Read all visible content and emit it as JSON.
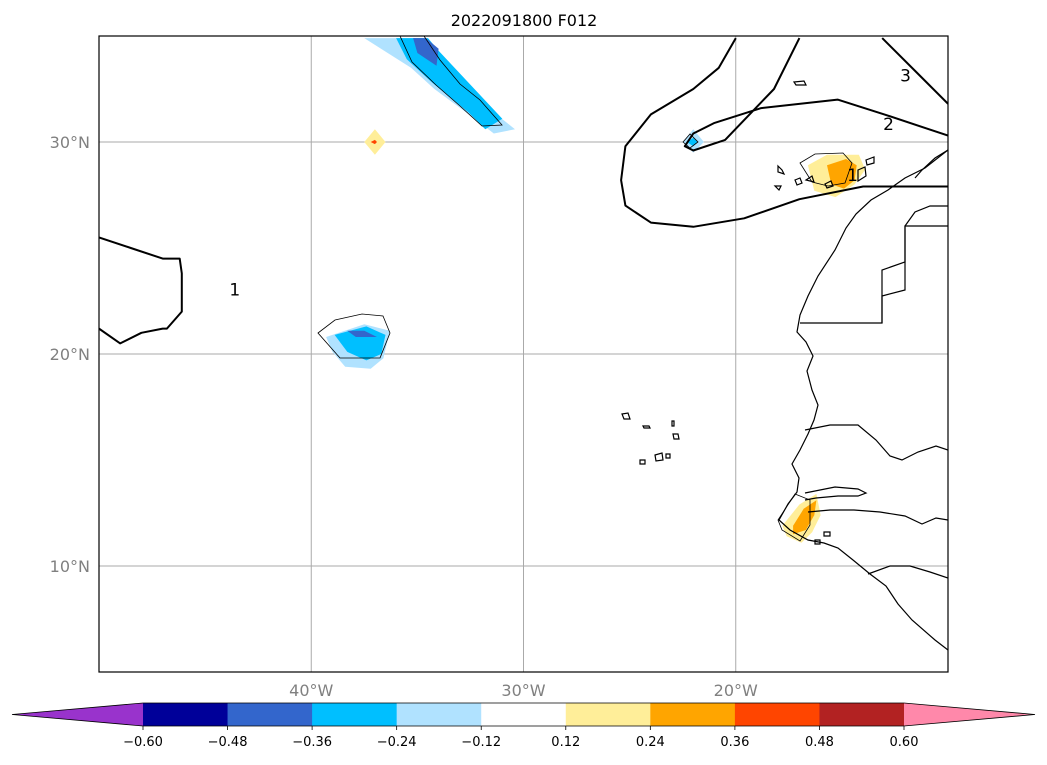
{
  "chart_data": {
    "type": "map-contour",
    "title": "2022091800 F012",
    "projection": "PlateCarree",
    "lon_range": [
      -50,
      -10
    ],
    "lat_range": [
      5,
      35
    ],
    "x_ticks": [
      {
        "value": -40,
        "label": "40°W"
      },
      {
        "value": -30,
        "label": "30°W"
      },
      {
        "value": -20,
        "label": "20°W"
      }
    ],
    "y_ticks": [
      {
        "value": 10,
        "label": "10°N"
      },
      {
        "value": 20,
        "label": "20°N"
      },
      {
        "value": 30,
        "label": "30°N"
      }
    ],
    "grid": true,
    "colorbar": {
      "orientation": "horizontal",
      "extend": "both",
      "levels": [
        -0.6,
        -0.48,
        -0.36,
        -0.24,
        -0.12,
        0.12,
        0.24,
        0.36,
        0.48,
        0.6
      ],
      "tick_labels": [
        "−0.60",
        "−0.48",
        "−0.36",
        "−0.24",
        "−0.12",
        "0.12",
        "0.24",
        "0.36",
        "0.48",
        "0.60"
      ],
      "colors": [
        "#9933cc",
        "#000099",
        "#3366cc",
        "#00bfff",
        "#b0e2ff",
        "#ffffff",
        "#ffee99",
        "#ffa500",
        "#ff4500",
        "#b22222",
        "#ff88aa"
      ]
    },
    "contour_labels": [
      {
        "text": "1",
        "lon": -43.6,
        "lat": 23.0
      },
      {
        "text": "2",
        "lon": -12.8,
        "lat": 30.8
      },
      {
        "text": "3",
        "lon": -12.0,
        "lat": 33.1
      },
      {
        "text": "1",
        "lon": -14.5,
        "lat": 28.4
      }
    ],
    "contour_lines": [
      {
        "lon": [
          -50.0,
          -48.5,
          -47.0,
          -47.0,
          -46.2,
          -46.1,
          -46.1,
          -46.8,
          -47.0,
          -48.0,
          -49.0,
          -50.0
        ],
        "lat": [
          25.5,
          25.0,
          24.5,
          24.5,
          24.5,
          23.8,
          22.0,
          21.2,
          21.2,
          21.0,
          20.5,
          21.2
        ]
      },
      {
        "lon": [
          -20.0,
          -20.8,
          -22.0,
          -24.0,
          -25.2,
          -25.4,
          -25.2,
          -24.0,
          -22.0,
          -19.6,
          -17.0,
          -14.0,
          -10.0
        ],
        "lat": [
          34.9,
          33.5,
          32.5,
          31.3,
          29.8,
          28.2,
          27.0,
          26.2,
          26.0,
          26.4,
          27.3,
          27.9,
          27.9
        ]
      },
      {
        "lon": [
          -17.0,
          -18.2,
          -20.5,
          -22.0,
          -22.4,
          -22.0,
          -21.0,
          -18.8,
          -15.2,
          -13.0,
          -10.0
        ],
        "lat": [
          34.9,
          32.5,
          30.1,
          29.6,
          29.8,
          30.4,
          30.9,
          31.6,
          32.0,
          31.3,
          30.3
        ]
      },
      {
        "lon": [
          -13.1,
          -11.5,
          -10.0
        ],
        "lat": [
          34.9,
          33.3,
          31.8
        ]
      }
    ],
    "filled_regions": [
      {
        "level": "-0.24..-0.12",
        "color": "#b0e2ff",
        "lon": [
          -37.5,
          -36.1,
          -34.7,
          -31.4,
          -30.4,
          -31.4,
          -32.3,
          -34.2,
          -35.3
        ],
        "lat": [
          34.9,
          34.9,
          34.9,
          31.4,
          30.6,
          30.4,
          31.1,
          32.5,
          33.5
        ]
      },
      {
        "level": "-0.36..-0.24",
        "color": "#00bfff",
        "lon": [
          -36.0,
          -34.5,
          -34.0,
          -31.0,
          -31.8,
          -32.6,
          -34.3,
          -35.5
        ],
        "lat": [
          34.9,
          34.9,
          34.3,
          31.1,
          30.6,
          31.4,
          32.8,
          33.9
        ]
      },
      {
        "level": "-0.48..-0.36",
        "color": "#3366cc",
        "lon": [
          -35.2,
          -34.6,
          -34.0,
          -34.1,
          -35.0
        ],
        "lat": [
          34.9,
          34.9,
          34.4,
          33.6,
          34.2
        ]
      },
      {
        "level": "-0.24..-0.12",
        "color": "#b0e2ff",
        "lon": [
          -39.3,
          -37.5,
          -36.3,
          -36.6,
          -37.2,
          -38.4,
          -39.0
        ],
        "lat": [
          20.8,
          21.4,
          21.1,
          19.8,
          19.3,
          19.4,
          20.1
        ]
      },
      {
        "level": "-0.36..-0.24",
        "color": "#00bfff",
        "lon": [
          -38.9,
          -37.4,
          -36.5,
          -36.7,
          -37.4,
          -38.3
        ],
        "lat": [
          20.9,
          21.3,
          20.9,
          20.0,
          19.7,
          20.1
        ]
      },
      {
        "level": "-0.48..-0.36",
        "color": "#3366cc",
        "lon": [
          -38.3,
          -37.5,
          -36.9,
          -37.9
        ],
        "lat": [
          21.1,
          21.1,
          20.8,
          20.8
        ]
      },
      {
        "level": "-0.24..-0.12",
        "color": "#b0e2ff",
        "lon": [
          -22.5,
          -22.0,
          -21.5,
          -22.0
        ],
        "lat": [
          30.0,
          30.6,
          30.0,
          29.5
        ]
      },
      {
        "level": "-0.36..-0.24",
        "color": "#00bfff",
        "lon": [
          -22.3,
          -22.0,
          -21.8,
          -22.0
        ],
        "lat": [
          30.0,
          30.2,
          30.0,
          29.8
        ]
      },
      {
        "level": "0.12..0.24",
        "color": "#ffee99",
        "lon": [
          -37.5,
          -37.0,
          -36.5,
          -37.0
        ],
        "lat": [
          30.0,
          30.6,
          30.0,
          29.4
        ]
      },
      {
        "level": "0.36..0.48",
        "color": "#ff4500",
        "lon": [
          -37.2,
          -37.0,
          -36.9,
          -37.0
        ],
        "lat": [
          30.0,
          30.1,
          30.0,
          29.9
        ]
      },
      {
        "level": "0.12..0.24",
        "color": "#ffee99",
        "lon": [
          -16.6,
          -15.7,
          -14.2,
          -13.9,
          -14.4,
          -15.3,
          -16.3
        ],
        "lat": [
          28.9,
          29.4,
          29.4,
          28.7,
          28.0,
          27.4,
          27.7
        ]
      },
      {
        "level": "0.24..0.36",
        "color": "#ffa500",
        "lon": [
          -15.7,
          -14.8,
          -14.3,
          -14.4,
          -14.9,
          -15.5
        ],
        "lat": [
          28.9,
          29.2,
          28.9,
          28.2,
          27.8,
          28.0
        ]
      },
      {
        "level": "0.12..0.24",
        "color": "#ffee99",
        "lon": [
          -17.8,
          -17.0,
          -16.2,
          -16.0,
          -16.4,
          -16.9,
          -17.6
        ],
        "lat": [
          11.9,
          12.9,
          13.4,
          12.4,
          11.6,
          11.1,
          11.4
        ]
      },
      {
        "level": "0.24..0.36",
        "color": "#ffa500",
        "lon": [
          -17.3,
          -16.8,
          -16.2,
          -16.3,
          -16.7,
          -17.3
        ],
        "lat": [
          11.9,
          12.7,
          13.1,
          12.4,
          11.7,
          11.5
        ]
      }
    ]
  }
}
